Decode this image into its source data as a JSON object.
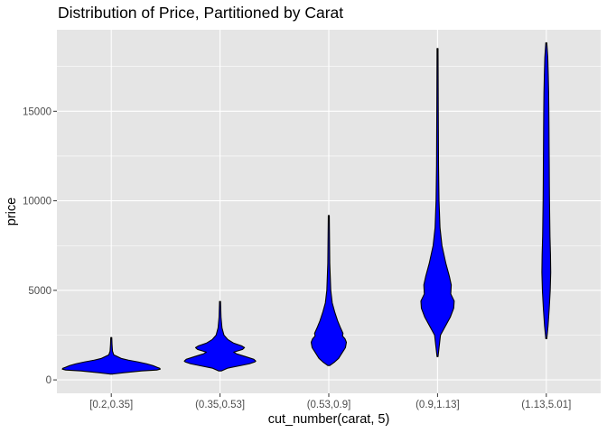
{
  "chart_data": {
    "type": "violin",
    "title": "Distribution of Price, Partitioned by Carat",
    "xlabel": "cut_number(carat, 5)",
    "ylabel": "price",
    "ylim": [
      -750,
      19550
    ],
    "y_ticks": [
      0,
      5000,
      10000,
      15000
    ],
    "y_tick_labels": [
      "0",
      "5000",
      "10000",
      "15000"
    ],
    "categories": [
      "[0.2,0.35]",
      "(0.35,0.53]",
      "(0.53,0.9]",
      "(0.9,1.13]",
      "(1.13,5.01]"
    ],
    "fill_color": "#0000ff",
    "outline_color": "#000000",
    "panel_background": "#e5e5e5",
    "gridline_color": "#ffffff",
    "grid": true,
    "violins": [
      {
        "category": "[0.2,0.35]",
        "profile": [
          [
            326,
            0.03
          ],
          [
            400,
            0.25
          ],
          [
            500,
            0.62
          ],
          [
            550,
            0.93
          ],
          [
            600,
            1.0
          ],
          [
            650,
            0.99
          ],
          [
            700,
            0.94
          ],
          [
            800,
            0.85
          ],
          [
            900,
            0.72
          ],
          [
            1000,
            0.55
          ],
          [
            1100,
            0.35
          ],
          [
            1200,
            0.2
          ],
          [
            1400,
            0.05
          ],
          [
            1600,
            0.025
          ],
          [
            2000,
            0.015
          ],
          [
            2366,
            0.01
          ]
        ]
      },
      {
        "category": "(0.35,0.53]",
        "profile": [
          [
            500,
            0.03
          ],
          [
            650,
            0.15
          ],
          [
            800,
            0.42
          ],
          [
            900,
            0.6
          ],
          [
            1000,
            0.71
          ],
          [
            1050,
            0.73
          ],
          [
            1150,
            0.69
          ],
          [
            1300,
            0.52
          ],
          [
            1450,
            0.34
          ],
          [
            1550,
            0.28
          ],
          [
            1700,
            0.46
          ],
          [
            1800,
            0.5
          ],
          [
            1900,
            0.44
          ],
          [
            2050,
            0.28
          ],
          [
            2250,
            0.16
          ],
          [
            2500,
            0.08
          ],
          [
            2900,
            0.04
          ],
          [
            3500,
            0.02
          ],
          [
            4380,
            0.01
          ]
        ]
      },
      {
        "category": "(0.53,0.9]",
        "profile": [
          [
            800,
            0.02
          ],
          [
            1000,
            0.12
          ],
          [
            1200,
            0.2
          ],
          [
            1500,
            0.27
          ],
          [
            1800,
            0.34
          ],
          [
            2100,
            0.36
          ],
          [
            2300,
            0.33
          ],
          [
            2450,
            0.28
          ],
          [
            2600,
            0.29
          ],
          [
            2900,
            0.24
          ],
          [
            3300,
            0.18
          ],
          [
            3800,
            0.12
          ],
          [
            4300,
            0.07
          ],
          [
            5000,
            0.04
          ],
          [
            6500,
            0.02
          ],
          [
            9180,
            0.01
          ]
        ]
      },
      {
        "category": "(0.9,1.13]",
        "profile": [
          [
            1300,
            0.01
          ],
          [
            2500,
            0.06
          ],
          [
            3500,
            0.26
          ],
          [
            4000,
            0.33
          ],
          [
            4400,
            0.34
          ],
          [
            4800,
            0.27
          ],
          [
            5300,
            0.28
          ],
          [
            5800,
            0.24
          ],
          [
            6500,
            0.17
          ],
          [
            7500,
            0.09
          ],
          [
            8500,
            0.05
          ],
          [
            10000,
            0.03
          ],
          [
            12000,
            0.02
          ],
          [
            15000,
            0.015
          ],
          [
            18500,
            0.01
          ]
        ]
      },
      {
        "category": "(1.13,5.01]",
        "profile": [
          [
            2300,
            0.01
          ],
          [
            3000,
            0.035
          ],
          [
            4000,
            0.06
          ],
          [
            5000,
            0.08
          ],
          [
            6000,
            0.09
          ],
          [
            7000,
            0.085
          ],
          [
            8000,
            0.075
          ],
          [
            9000,
            0.07
          ],
          [
            10000,
            0.065
          ],
          [
            11000,
            0.062
          ],
          [
            12000,
            0.06
          ],
          [
            13000,
            0.057
          ],
          [
            14000,
            0.055
          ],
          [
            15000,
            0.052
          ],
          [
            16000,
            0.048
          ],
          [
            17000,
            0.04
          ],
          [
            18000,
            0.03
          ],
          [
            18823,
            0.01
          ]
        ]
      }
    ]
  }
}
